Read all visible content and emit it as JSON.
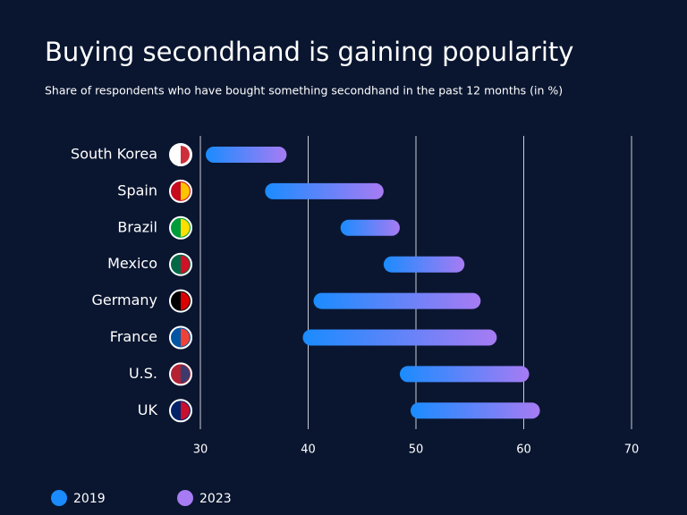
{
  "chart_data": {
    "type": "range-bar",
    "title": "Buying secondhand is gaining popularity",
    "subtitle": "Share of respondents who have bought something secondhand in the past 12 months (in %)",
    "categories": [
      "South Korea",
      "Spain",
      "Brazil",
      "Mexico",
      "Germany",
      "France",
      "U.S.",
      "UK"
    ],
    "series": [
      {
        "name": "2019",
        "color": "#1a8cff",
        "values": [
          30.5,
          36,
          43,
          47,
          40.5,
          39.5,
          48.5,
          49.5
        ]
      },
      {
        "name": "2023",
        "color": "#a77bf3",
        "values": [
          38,
          47,
          48.5,
          54.5,
          56,
          57.5,
          60.5,
          61.5
        ]
      }
    ],
    "xlim": [
      30,
      70
    ],
    "xticks": [
      30,
      40,
      50,
      60,
      70
    ],
    "grid": true
  }
}
